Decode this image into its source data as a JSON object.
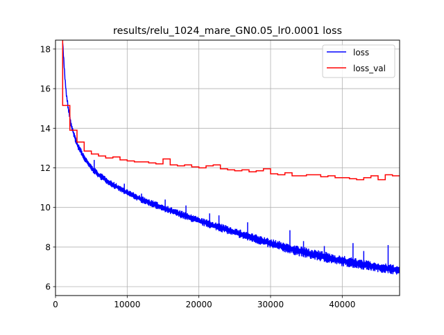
{
  "chart_data": {
    "type": "line",
    "title": "results/relu_1024_mare_GN0.05_lr0.0001 loss",
    "xlabel": "",
    "ylabel": "",
    "xlim": [
      0,
      48000
    ],
    "ylim": [
      5.55,
      18.45
    ],
    "grid": true,
    "legend_position": "upper-right",
    "x_ticks": [
      0,
      10000,
      20000,
      30000,
      40000
    ],
    "x_tick_labels": [
      "0",
      "10000",
      "20000",
      "30000",
      "40000"
    ],
    "y_ticks": [
      6,
      8,
      10,
      12,
      14,
      16,
      18
    ],
    "y_tick_labels": [
      "6",
      "8",
      "10",
      "12",
      "14",
      "16",
      "18"
    ],
    "series": [
      {
        "name": "loss",
        "color": "#0000ff",
        "style": "noisy-band",
        "x": [
          1000,
          1150,
          1300,
          1500,
          1800,
          2200,
          2600,
          3000,
          3500,
          4000,
          5000,
          6000,
          8000,
          10000,
          12000,
          15000,
          20000,
          25000,
          30000,
          35000,
          40000,
          45000,
          48000
        ],
        "y_low": [
          18.3,
          17.3,
          16.5,
          15.6,
          14.8,
          14.0,
          13.5,
          13.05,
          12.7,
          12.35,
          11.85,
          11.5,
          11.0,
          10.6,
          10.25,
          9.8,
          9.15,
          8.55,
          7.95,
          7.45,
          7.05,
          6.75,
          6.6
        ],
        "y_high": [
          18.5,
          17.6,
          16.8,
          15.9,
          15.1,
          14.3,
          13.8,
          13.35,
          13.0,
          12.65,
          12.15,
          11.8,
          11.3,
          10.9,
          10.55,
          10.15,
          9.5,
          8.95,
          8.4,
          7.95,
          7.55,
          7.2,
          7.05
        ],
        "spikes": [
          {
            "x": 2300,
            "y": 14.1
          },
          {
            "x": 2800,
            "y": 13.5
          },
          {
            "x": 5400,
            "y": 12.4
          },
          {
            "x": 9600,
            "y": 11.2
          },
          {
            "x": 12000,
            "y": 10.7
          },
          {
            "x": 15300,
            "y": 10.4
          },
          {
            "x": 18200,
            "y": 10.1
          },
          {
            "x": 21500,
            "y": 9.7
          },
          {
            "x": 22800,
            "y": 9.6
          },
          {
            "x": 26800,
            "y": 9.25
          },
          {
            "x": 32700,
            "y": 8.85
          },
          {
            "x": 34600,
            "y": 8.3
          },
          {
            "x": 37500,
            "y": 8.05
          },
          {
            "x": 41500,
            "y": 8.2
          },
          {
            "x": 43000,
            "y": 7.8
          },
          {
            "x": 46400,
            "y": 8.1
          }
        ]
      },
      {
        "name": "loss_val",
        "color": "#ff0000",
        "style": "step",
        "x": [
          1000,
          1000,
          2000,
          2000,
          3000,
          3000,
          4000,
          4000,
          5000,
          5000,
          6000,
          6000,
          7000,
          7000,
          8000,
          8000,
          9000,
          9000,
          10000,
          10000,
          11000,
          11000,
          12000,
          12000,
          13000,
          13000,
          14000,
          14000,
          15000,
          15000,
          16000,
          16000,
          17000,
          17000,
          18000,
          18000,
          19000,
          19000,
          20000,
          20000,
          21000,
          21000,
          22000,
          22000,
          23000,
          23000,
          24000,
          24000,
          25000,
          25000,
          26000,
          26000,
          27000,
          27000,
          28000,
          28000,
          29000,
          29000,
          30000,
          30000,
          31000,
          31000,
          32000,
          32000,
          33000,
          33000,
          34000,
          34000,
          35000,
          35000,
          36000,
          36000,
          37000,
          37000,
          38000,
          38000,
          39000,
          39000,
          40000,
          40000,
          41000,
          41000,
          42000,
          42000,
          43000,
          43000,
          44000,
          44000,
          45000,
          45000,
          46000,
          46000,
          47000,
          47000,
          48000
        ],
        "y": [
          18.45,
          15.15,
          15.15,
          13.9,
          13.9,
          13.3,
          13.3,
          12.85,
          12.85,
          12.7,
          12.7,
          12.6,
          12.6,
          12.5,
          12.5,
          12.55,
          12.55,
          12.4,
          12.4,
          12.35,
          12.35,
          12.3,
          12.3,
          12.3,
          12.3,
          12.25,
          12.25,
          12.2,
          12.2,
          12.45,
          12.45,
          12.15,
          12.15,
          12.1,
          12.1,
          12.15,
          12.15,
          12.05,
          12.05,
          12.0,
          12.0,
          12.1,
          12.1,
          12.15,
          12.15,
          11.95,
          11.95,
          11.9,
          11.9,
          11.85,
          11.85,
          11.9,
          11.9,
          11.8,
          11.8,
          11.85,
          11.85,
          11.95,
          11.95,
          11.7,
          11.7,
          11.65,
          11.65,
          11.75,
          11.75,
          11.6,
          11.6,
          11.6,
          11.6,
          11.65,
          11.65,
          11.65,
          11.65,
          11.55,
          11.55,
          11.6,
          11.6,
          11.5,
          11.5,
          11.5,
          11.5,
          11.45,
          11.45,
          11.4,
          11.4,
          11.5,
          11.5,
          11.6,
          11.6,
          11.4,
          11.4,
          11.65,
          11.65,
          11.6,
          11.6
        ]
      }
    ]
  }
}
